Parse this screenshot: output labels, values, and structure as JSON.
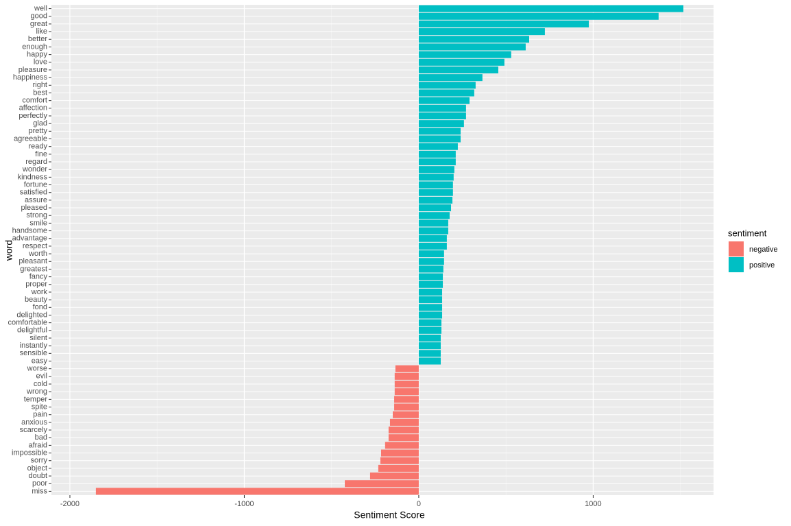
{
  "chart_data": {
    "type": "barh",
    "x_label": "Sentiment Score",
    "y_label": "word",
    "categories": [
      "well",
      "good",
      "great",
      "like",
      "better",
      "enough",
      "happy",
      "love",
      "pleasure",
      "happiness",
      "right",
      "best",
      "comfort",
      "affection",
      "perfectly",
      "glad",
      "pretty",
      "agreeable",
      "ready",
      "fine",
      "regard",
      "wonder",
      "kindness",
      "fortune",
      "satisfied",
      "assure",
      "pleased",
      "strong",
      "smile",
      "handsome",
      "advantage",
      "respect",
      "worth",
      "pleasant",
      "greatest",
      "fancy",
      "proper",
      "work",
      "beauty",
      "fond",
      "delighted",
      "comfortable",
      "delightful",
      "silent",
      "instantly",
      "sensible",
      "easy",
      "worse",
      "evil",
      "cold",
      "wrong",
      "temper",
      "spite",
      "pain",
      "anxious",
      "scarcely",
      "bad",
      "afraid",
      "impossible",
      "sorry",
      "object",
      "doubt",
      "poor",
      "miss"
    ],
    "series": [
      {
        "name": "negative",
        "color": "#F8766D",
        "values": [
          null,
          null,
          null,
          null,
          null,
          null,
          null,
          null,
          null,
          null,
          null,
          null,
          null,
          null,
          null,
          null,
          null,
          null,
          null,
          null,
          null,
          null,
          null,
          null,
          null,
          null,
          null,
          null,
          null,
          null,
          null,
          null,
          null,
          null,
          null,
          null,
          null,
          null,
          null,
          null,
          null,
          null,
          null,
          null,
          null,
          null,
          null,
          -134,
          -138,
          -138,
          -138,
          -141,
          -141,
          -149,
          -165,
          -173,
          -173,
          -193,
          -216,
          -220,
          -232,
          -279,
          -424,
          -1851
        ]
      },
      {
        "name": "positive",
        "color": "#00BFC4",
        "values": [
          1517,
          1375,
          975,
          723,
          633,
          613,
          530,
          491,
          456,
          365,
          326,
          318,
          291,
          271,
          271,
          259,
          240,
          240,
          224,
          212,
          212,
          204,
          200,
          196,
          196,
          193,
          185,
          177,
          169,
          169,
          161,
          161,
          145,
          145,
          141,
          138,
          138,
          134,
          134,
          134,
          134,
          130,
          130,
          126,
          126,
          126,
          126,
          null,
          null,
          null,
          null,
          null,
          null,
          null,
          null,
          null,
          null,
          null,
          null,
          null,
          null,
          null,
          null,
          null
        ]
      }
    ],
    "legend_title": "sentiment",
    "legend_position": "right",
    "xlim": [
      -2106,
      1690
    ],
    "xticks": [
      -2000,
      -1000,
      0,
      1000
    ],
    "grid": true
  }
}
